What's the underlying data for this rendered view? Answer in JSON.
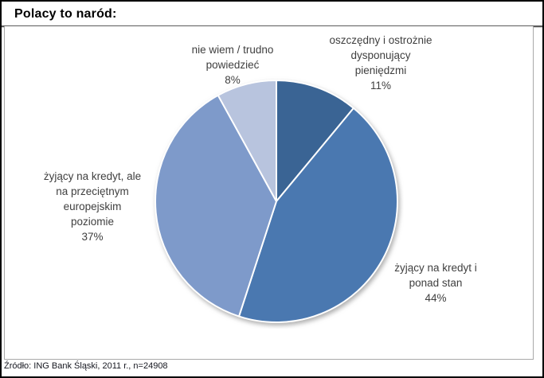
{
  "window": {
    "title": "Polacy to naród:"
  },
  "chart_data": {
    "type": "pie",
    "title": "Polacy to naród:",
    "start_angle_deg": 0,
    "direction": "clockwise",
    "legend_position": "none",
    "slices": [
      {
        "label": "oszczędny i ostrożnie dysponujący pieniędzmi",
        "value_pct": 11,
        "color": "#3A6494"
      },
      {
        "label": "żyjący na kredyt i ponad stan",
        "value_pct": 44,
        "color": "#4A78B0"
      },
      {
        "label": "żyjący na kredyt, ale na przeciętnym europejskim poziomie",
        "value_pct": 37,
        "color": "#7E9ACA"
      },
      {
        "label": "nie wiem / trudno powiedzieć",
        "value_pct": 8,
        "color": "#B8C4DE"
      }
    ],
    "callouts": [
      {
        "slice": "oszczędny i ostrożnie dysponujący pieniędzmi",
        "text": "oszczędny i ostrożnie\ndysponujący\npieniędzmi\n11%"
      },
      {
        "slice": "nie wiem / trudno powiedzieć",
        "text": "nie wiem / trudno\npowiedzieć\n8%"
      },
      {
        "slice": "żyjący na kredyt, ale na przeciętnym europejskim poziomie",
        "text": "żyjący na kredyt, ale\nna przeciętnym\neuropejskim\npoziomie\n37%"
      },
      {
        "slice": "żyjący na kredyt i ponad stan",
        "text": "żyjący na kredyt i\nponad stan\n44%"
      }
    ],
    "separator_color": "#FFFFFF",
    "label_color": "#3F3F3F",
    "source": "Źródło: ING Bank Śląski, 2011 r., n=24908"
  }
}
